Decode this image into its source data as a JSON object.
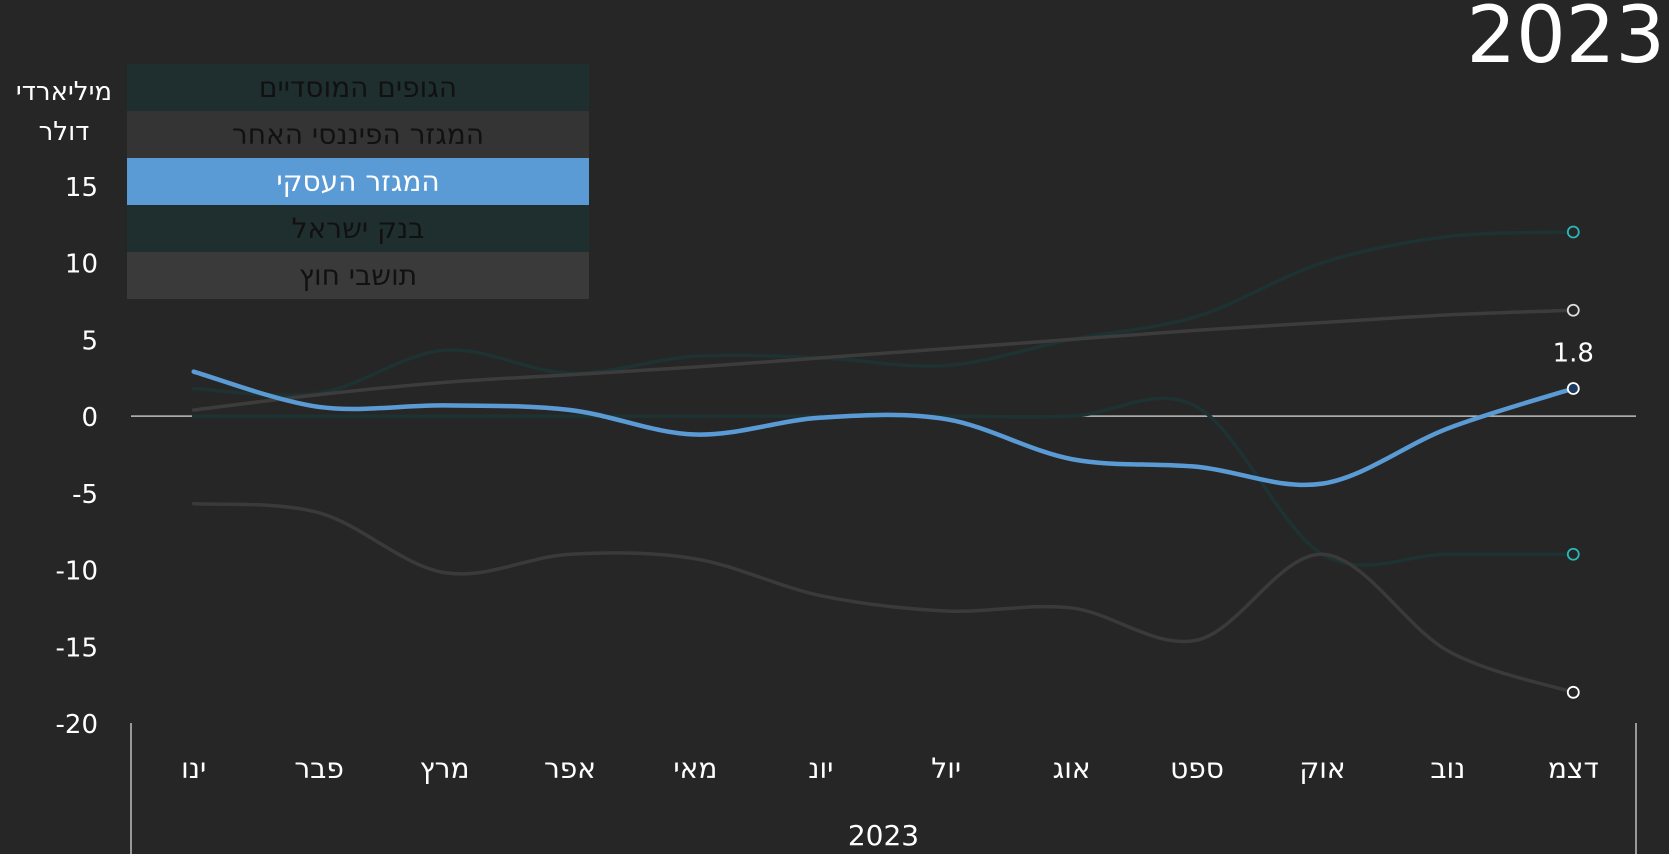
{
  "title": "2023",
  "chart_data": {
    "type": "line",
    "ylabel": "מיליארדי דולר",
    "xlabel": "2023",
    "ylim": [
      -20,
      15
    ],
    "yticks": [
      15,
      10,
      5,
      0,
      -5,
      -10,
      -15,
      -20
    ],
    "categories": [
      "ינו",
      "פבר",
      "מרץ",
      "אפר",
      "מאי",
      "יונ",
      "יול",
      "אוג",
      "ספט",
      "אוק",
      "נוב",
      "דצמ"
    ],
    "legend": [
      {
        "name": "הגופים המוסדיים",
        "bg": "#1f2e2e",
        "color": "#111111",
        "active": false
      },
      {
        "name": "המגזר הפיננסי האחר",
        "bg": "#343434",
        "color": "#111111",
        "active": false
      },
      {
        "name": "המגזר העסקי",
        "bg": "#5b9bd5",
        "color": "#ffffff",
        "active": true
      },
      {
        "name": "בנק ישראל",
        "bg": "#1f2e2e",
        "color": "#111111",
        "active": false
      },
      {
        "name": "תושבי חוץ",
        "bg": "#3a3a3a",
        "color": "#111111",
        "active": false
      }
    ],
    "series": [
      {
        "name": "הגופים המוסדיים",
        "color": "#1e3232",
        "width": 3.5,
        "values": [
          1.8,
          1.5,
          4.3,
          2.8,
          3.9,
          3.8,
          3.3,
          5.0,
          6.5,
          10.0,
          11.7,
          12.0
        ],
        "end_marker": true,
        "marker_stroke": "#2ab7b7"
      },
      {
        "name": "המגזר הפיננסי האחר",
        "color": "#3c3c3c",
        "width": 3.5,
        "values": [
          0.4,
          1.4,
          2.2,
          2.7,
          3.2,
          3.8,
          4.4,
          5.0,
          5.6,
          6.1,
          6.6,
          6.9
        ],
        "end_marker": true,
        "marker_stroke": "#dddddd"
      },
      {
        "name": "בנק ישראל",
        "color": "#1e3232",
        "width": 3.5,
        "values": [
          0,
          0,
          0,
          0,
          0,
          0,
          0,
          0,
          0.6,
          -9.0,
          -9.0,
          -9.0
        ],
        "end_marker": true,
        "marker_stroke": "#2ab7b7"
      },
      {
        "name": "תושבי חוץ",
        "color": "#3a3a3a",
        "width": 3.5,
        "values": [
          -5.7,
          -6.3,
          -10.2,
          -9.0,
          -9.3,
          -11.7,
          -12.7,
          -12.5,
          -14.6,
          -9.0,
          -15.3,
          -18.0
        ],
        "end_marker": true,
        "marker_stroke": "#ffffff"
      },
      {
        "name": "המגזר העסקי",
        "color": "#5b9bd5",
        "width": 4.5,
        "values": [
          2.9,
          0.6,
          0.7,
          0.4,
          -1.2,
          -0.1,
          -0.2,
          -2.8,
          -3.3,
          -4.4,
          -0.8,
          1.8
        ],
        "end_marker": true,
        "marker_stroke": "#ffffff",
        "end_label": "1.8"
      }
    ]
  }
}
